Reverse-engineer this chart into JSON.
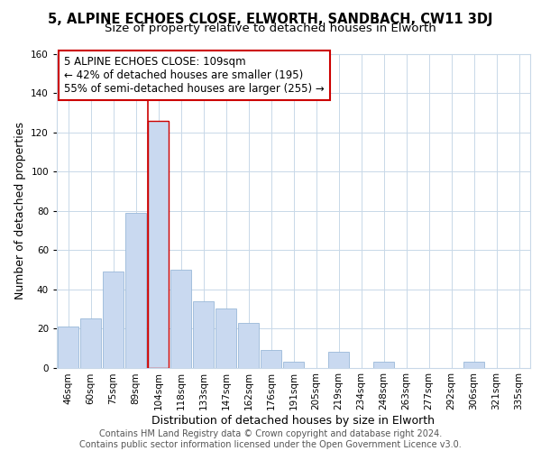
{
  "title": "5, ALPINE ECHOES CLOSE, ELWORTH, SANDBACH, CW11 3DJ",
  "subtitle": "Size of property relative to detached houses in Elworth",
  "xlabel": "Distribution of detached houses by size in Elworth",
  "ylabel": "Number of detached properties",
  "bar_labels": [
    "46sqm",
    "60sqm",
    "75sqm",
    "89sqm",
    "104sqm",
    "118sqm",
    "133sqm",
    "147sqm",
    "162sqm",
    "176sqm",
    "191sqm",
    "205sqm",
    "219sqm",
    "234sqm",
    "248sqm",
    "263sqm",
    "277sqm",
    "292sqm",
    "306sqm",
    "321sqm",
    "335sqm"
  ],
  "bar_values": [
    21,
    25,
    49,
    79,
    126,
    50,
    34,
    30,
    23,
    9,
    3,
    0,
    8,
    0,
    3,
    0,
    0,
    0,
    3,
    0,
    0
  ],
  "bar_color": "#c9d9f0",
  "bar_edge_color": "#9ab8d8",
  "highlight_bar_index": 4,
  "highlight_edge_color": "#cc0000",
  "red_line_x": 4,
  "annotation_text_line1": "5 ALPINE ECHOES CLOSE: 109sqm",
  "annotation_text_line2": "← 42% of detached houses are smaller (195)",
  "annotation_text_line3": "55% of semi-detached houses are larger (255) →",
  "annotation_box_color": "#ffffff",
  "annotation_box_edge_color": "#cc0000",
  "footer_line1": "Contains HM Land Registry data © Crown copyright and database right 2024.",
  "footer_line2": "Contains public sector information licensed under the Open Government Licence v3.0.",
  "ylim": [
    0,
    160
  ],
  "yticks": [
    0,
    20,
    40,
    60,
    80,
    100,
    120,
    140,
    160
  ],
  "background_color": "#ffffff",
  "grid_color": "#c8d8e8",
  "title_fontsize": 10.5,
  "subtitle_fontsize": 9.5,
  "axis_label_fontsize": 9,
  "tick_fontsize": 7.5,
  "annotation_fontsize": 8.5,
  "footer_fontsize": 7
}
